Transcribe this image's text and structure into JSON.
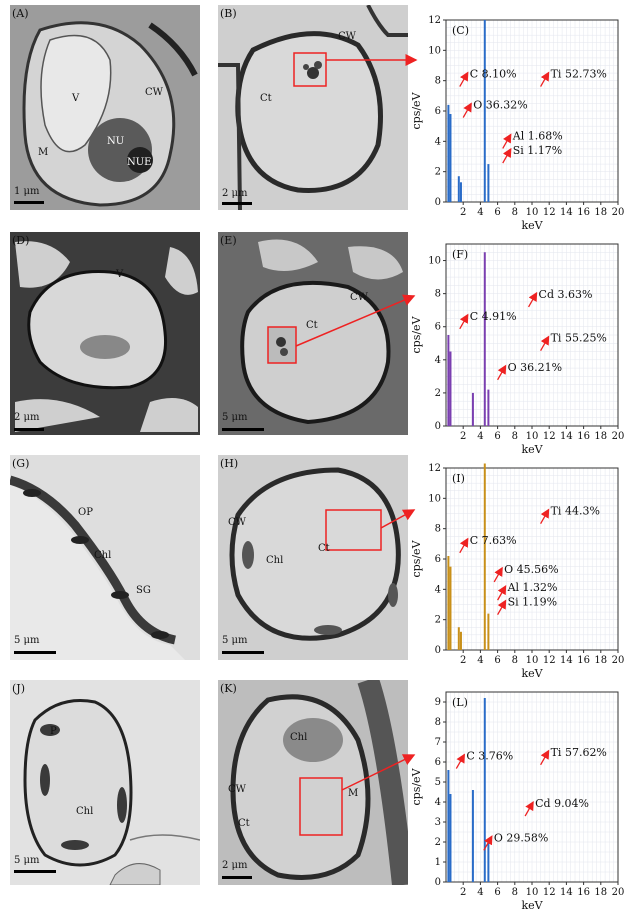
{
  "tem_panels": [
    {
      "id": "A",
      "label": "(A)",
      "scale": "1 μm",
      "labels": [
        {
          "t": "V"
        },
        {
          "t": "CW"
        },
        {
          "t": "NU"
        },
        {
          "t": "NUE"
        },
        {
          "t": "M"
        }
      ]
    },
    {
      "id": "B",
      "label": "(B)",
      "scale": "2 μm",
      "labels": [
        {
          "t": "Ct"
        },
        {
          "t": "CW"
        }
      ]
    },
    {
      "id": "D",
      "label": "(D)",
      "scale": "2 μm",
      "labels": [
        {
          "t": "V"
        }
      ]
    },
    {
      "id": "E",
      "label": "(E)",
      "scale": "5 μm",
      "labels": [
        {
          "t": "Ct"
        },
        {
          "t": "CW"
        }
      ]
    },
    {
      "id": "G",
      "label": "(G)",
      "scale": "5 μm",
      "labels": [
        {
          "t": "OP"
        },
        {
          "t": "Chl"
        },
        {
          "t": "SG"
        }
      ]
    },
    {
      "id": "H",
      "label": "(H)",
      "scale": "5 μm",
      "labels": [
        {
          "t": "CW"
        },
        {
          "t": "Ct"
        },
        {
          "t": "Chl"
        }
      ]
    },
    {
      "id": "J",
      "label": "(J)",
      "scale": "5 μm",
      "labels": [
        {
          "t": "P"
        },
        {
          "t": "Chl"
        }
      ]
    },
    {
      "id": "K",
      "label": "(K)",
      "scale": "2 μm",
      "labels": [
        {
          "t": "Chl"
        },
        {
          "t": "CW"
        },
        {
          "t": "Ct"
        },
        {
          "t": "M"
        }
      ]
    }
  ],
  "chart_data": [
    {
      "panel": "(C)",
      "type": "line",
      "xlabel": "keV",
      "ylabel": "cps/eV",
      "xlim": [
        0,
        20
      ],
      "ylim": [
        0,
        12
      ],
      "xticks": [
        2,
        4,
        6,
        8,
        10,
        12,
        14,
        16,
        18,
        20
      ],
      "yticks": [
        0,
        2,
        4,
        6,
        8,
        10,
        12
      ],
      "annotations": [
        "C 8.10%",
        "Ti 52.73%",
        "O 36.32%",
        "Al 1.68%",
        "Si 1.17%"
      ],
      "peaks": [
        {
          "x": 0.28,
          "y": 6.4
        },
        {
          "x": 0.52,
          "y": 5.8
        },
        {
          "x": 1.49,
          "y": 1.7
        },
        {
          "x": 1.74,
          "y": 1.3
        },
        {
          "x": 4.51,
          "y": 12.0
        },
        {
          "x": 4.93,
          "y": 2.5
        }
      ]
    },
    {
      "panel": "(F)",
      "type": "line",
      "xlabel": "keV",
      "ylabel": "cps/eV",
      "xlim": [
        0,
        20
      ],
      "ylim": [
        0,
        11
      ],
      "xticks": [
        2,
        4,
        6,
        8,
        10,
        12,
        14,
        16,
        18,
        20
      ],
      "yticks": [
        0,
        2,
        4,
        6,
        8,
        10
      ],
      "annotations": [
        "C 4.91%",
        "Cd 3.63%",
        "Ti 55.25%",
        "O 36.21%"
      ],
      "peaks": [
        {
          "x": 0.28,
          "y": 5.5
        },
        {
          "x": 0.52,
          "y": 4.5
        },
        {
          "x": 3.13,
          "y": 2.0
        },
        {
          "x": 4.51,
          "y": 10.5
        },
        {
          "x": 4.93,
          "y": 2.2
        }
      ]
    },
    {
      "panel": "(I)",
      "type": "line",
      "xlabel": "keV",
      "ylabel": "cps/eV",
      "xlim": [
        0,
        20
      ],
      "ylim": [
        0,
        12
      ],
      "xticks": [
        2,
        4,
        6,
        8,
        10,
        12,
        14,
        16,
        18,
        20
      ],
      "yticks": [
        0,
        2,
        4,
        6,
        8,
        10,
        12
      ],
      "annotations": [
        "Ti 44.3%",
        "C 7.63%",
        "O 45.56%",
        "Al 1.32%",
        "Si 1.19%"
      ],
      "peaks": [
        {
          "x": 0.28,
          "y": 6.2
        },
        {
          "x": 0.52,
          "y": 5.5
        },
        {
          "x": 1.49,
          "y": 1.5
        },
        {
          "x": 1.74,
          "y": 1.2
        },
        {
          "x": 4.51,
          "y": 12.3
        },
        {
          "x": 4.93,
          "y": 2.4
        }
      ]
    },
    {
      "panel": "(L)",
      "type": "line",
      "xlabel": "keV",
      "ylabel": "cps/eV",
      "xlim": [
        0,
        20
      ],
      "ylim": [
        0,
        9.5
      ],
      "xticks": [
        2,
        4,
        6,
        8,
        10,
        12,
        14,
        16,
        18,
        20
      ],
      "yticks": [
        0,
        1,
        2,
        3,
        4,
        5,
        6,
        7,
        8,
        9
      ],
      "annotations": [
        "C 3.76%",
        "Ti 57.62%",
        "Cd 9.04%",
        "O 29.58%"
      ],
      "peaks": [
        {
          "x": 0.28,
          "y": 5.6
        },
        {
          "x": 0.52,
          "y": 4.4
        },
        {
          "x": 3.13,
          "y": 4.6
        },
        {
          "x": 4.51,
          "y": 9.2
        },
        {
          "x": 4.93,
          "y": 2.0
        }
      ]
    }
  ]
}
